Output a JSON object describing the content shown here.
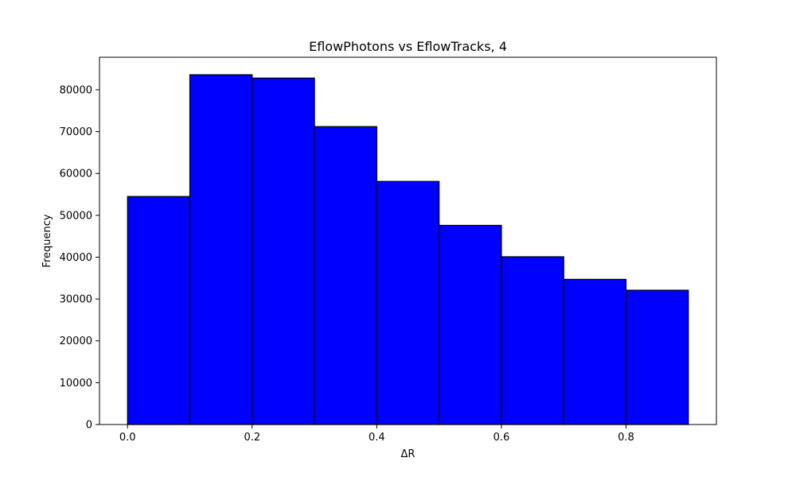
{
  "chart_data": {
    "type": "bar",
    "title": "EflowPhotons vs EflowTracks, 4",
    "xlabel": "ΔR",
    "ylabel": "Frequency",
    "bin_edges": [
      0.0,
      0.1,
      0.2,
      0.3,
      0.4,
      0.5,
      0.6,
      0.7,
      0.8,
      0.9
    ],
    "values": [
      54500,
      83600,
      82800,
      71200,
      58100,
      47600,
      40100,
      34700,
      32100
    ],
    "xlim": [
      -0.045,
      0.945
    ],
    "ylim": [
      0,
      87780
    ],
    "x_ticks": [
      0.0,
      0.2,
      0.4,
      0.6,
      0.8
    ],
    "x_tick_labels": [
      "0.0",
      "0.2",
      "0.4",
      "0.6",
      "0.8"
    ],
    "y_ticks": [
      0,
      10000,
      20000,
      30000,
      40000,
      50000,
      60000,
      70000,
      80000
    ],
    "y_tick_labels": [
      "0",
      "10000",
      "20000",
      "30000",
      "40000",
      "50000",
      "60000",
      "70000",
      "80000"
    ],
    "grid": false,
    "colors": {
      "bar_fill": "#0000ff",
      "bar_edge": "#000000",
      "axes": "#000000",
      "background": "#ffffff"
    }
  }
}
